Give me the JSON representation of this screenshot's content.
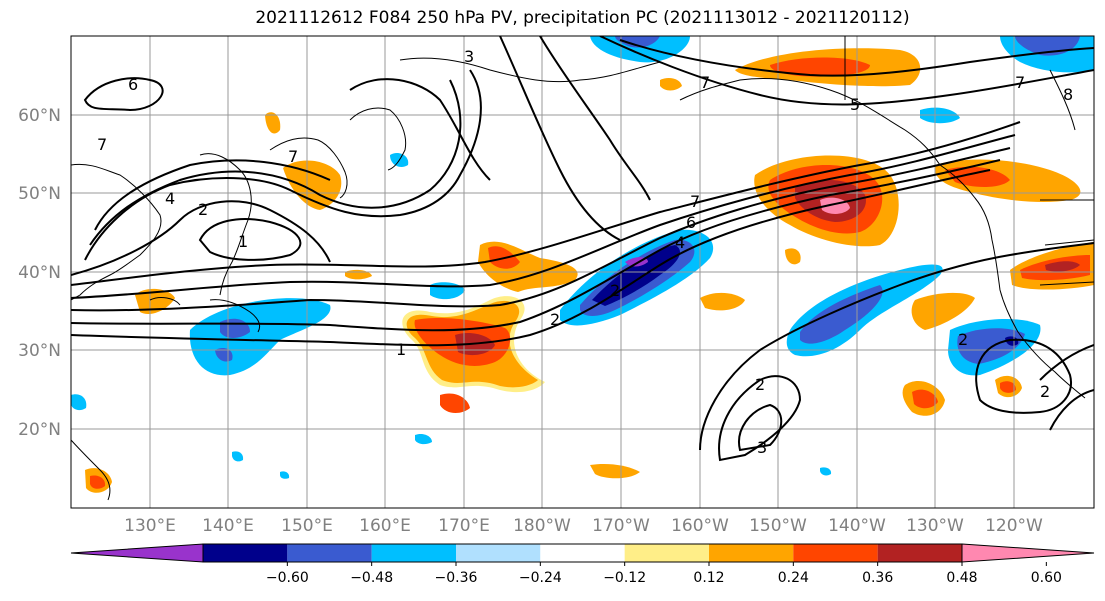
{
  "title": "2021112612 F084 250 hPa PV, precipitation PC (2021113012 - 2021120112)",
  "lat_labels": [
    "60°N",
    "50°N",
    "40°N",
    "30°N",
    "20°N"
  ],
  "lon_labels": [
    "130°E",
    "140°E",
    "150°E",
    "160°E",
    "170°E",
    "180°W",
    "170°W",
    "160°W",
    "150°W",
    "140°W",
    "130°W",
    "120°W"
  ],
  "colorbar": {
    "colors": [
      "#9933cc",
      "#00008b",
      "#3a5bd0",
      "#00bfff",
      "#b0e0fe",
      "#ffffff",
      "#ffee88",
      "#ffa500",
      "#ff4500",
      "#b22222",
      "#ff88b0"
    ],
    "tick_labels": [
      "−0.60",
      "−0.48",
      "−0.36",
      "−0.24",
      "−0.12",
      "0.12",
      "0.24",
      "0.36",
      "0.48",
      "0.60"
    ]
  },
  "contour_labels": [
    "6",
    "7",
    "4",
    "2",
    "1",
    "1",
    "2",
    "2",
    "4",
    "6",
    "7",
    "7",
    "5",
    "2",
    "3",
    "2",
    "2",
    "8",
    "7",
    "7",
    "3"
  ]
}
